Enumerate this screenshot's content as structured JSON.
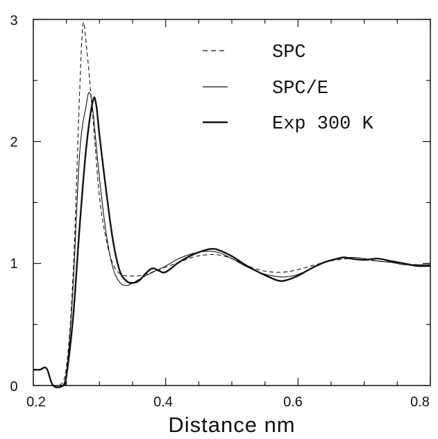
{
  "chart_data": {
    "type": "line",
    "title": "",
    "xlabel": "Distance nm",
    "ylabel": "",
    "xlim": [
      0.2,
      0.8
    ],
    "ylim": [
      0,
      3
    ],
    "x_ticks": [
      "0.2",
      "0.4",
      "0.6",
      "0.8"
    ],
    "y_ticks": [
      "0",
      "1",
      "2",
      "3"
    ],
    "grid": false,
    "legend_position": "top-right",
    "series": [
      {
        "name": "SPC",
        "style": "dashed",
        "points": [
          [
            0.24,
            0.0
          ],
          [
            0.25,
            0.15
          ],
          [
            0.26,
            0.9
          ],
          [
            0.27,
            2.4
          ],
          [
            0.275,
            2.95
          ],
          [
            0.28,
            2.8
          ],
          [
            0.29,
            2.2
          ],
          [
            0.3,
            1.55
          ],
          [
            0.31,
            1.2
          ],
          [
            0.32,
            1.0
          ],
          [
            0.33,
            0.92
          ],
          [
            0.34,
            0.9
          ],
          [
            0.36,
            0.9
          ],
          [
            0.38,
            0.93
          ],
          [
            0.4,
            0.97
          ],
          [
            0.42,
            1.01
          ],
          [
            0.44,
            1.05
          ],
          [
            0.46,
            1.07
          ],
          [
            0.48,
            1.07
          ],
          [
            0.5,
            1.04
          ],
          [
            0.52,
            0.99
          ],
          [
            0.54,
            0.95
          ],
          [
            0.56,
            0.93
          ],
          [
            0.58,
            0.93
          ],
          [
            0.6,
            0.95
          ],
          [
            0.62,
            0.98
          ],
          [
            0.64,
            1.01
          ],
          [
            0.66,
            1.03
          ],
          [
            0.68,
            1.04
          ],
          [
            0.7,
            1.03
          ],
          [
            0.72,
            1.02
          ],
          [
            0.74,
            1.01
          ],
          [
            0.76,
            1.0
          ],
          [
            0.78,
            0.99
          ],
          [
            0.8,
            0.99
          ]
        ]
      },
      {
        "name": "SPC/E",
        "style": "thin",
        "points": [
          [
            0.24,
            0.0
          ],
          [
            0.25,
            0.1
          ],
          [
            0.26,
            0.8
          ],
          [
            0.27,
            1.9
          ],
          [
            0.28,
            2.3
          ],
          [
            0.285,
            2.4
          ],
          [
            0.29,
            2.25
          ],
          [
            0.3,
            1.7
          ],
          [
            0.31,
            1.25
          ],
          [
            0.32,
            0.97
          ],
          [
            0.33,
            0.85
          ],
          [
            0.34,
            0.82
          ],
          [
            0.35,
            0.84
          ],
          [
            0.37,
            0.9
          ],
          [
            0.4,
            0.98
          ],
          [
            0.42,
            1.04
          ],
          [
            0.44,
            1.08
          ],
          [
            0.46,
            1.1
          ],
          [
            0.48,
            1.09
          ],
          [
            0.5,
            1.04
          ],
          [
            0.52,
            0.98
          ],
          [
            0.54,
            0.93
          ],
          [
            0.56,
            0.9
          ],
          [
            0.58,
            0.89
          ],
          [
            0.6,
            0.91
          ],
          [
            0.62,
            0.96
          ],
          [
            0.64,
            1.01
          ],
          [
            0.66,
            1.04
          ],
          [
            0.68,
            1.05
          ],
          [
            0.7,
            1.04
          ],
          [
            0.72,
            1.02
          ],
          [
            0.74,
            1.01
          ],
          [
            0.76,
            0.99
          ],
          [
            0.78,
            0.99
          ],
          [
            0.8,
            0.99
          ]
        ]
      },
      {
        "name": "Exp 300 K",
        "style": "thick",
        "points": [
          [
            0.2,
            0.13
          ],
          [
            0.21,
            0.13
          ],
          [
            0.22,
            0.14
          ],
          [
            0.23,
            0.0
          ],
          [
            0.245,
            0.0
          ],
          [
            0.25,
            0.08
          ],
          [
            0.26,
            0.55
          ],
          [
            0.27,
            1.3
          ],
          [
            0.28,
            1.95
          ],
          [
            0.29,
            2.33
          ],
          [
            0.295,
            2.3
          ],
          [
            0.3,
            2.05
          ],
          [
            0.31,
            1.6
          ],
          [
            0.32,
            1.2
          ],
          [
            0.33,
            0.95
          ],
          [
            0.34,
            0.86
          ],
          [
            0.35,
            0.84
          ],
          [
            0.36,
            0.86
          ],
          [
            0.37,
            0.92
          ],
          [
            0.38,
            0.96
          ],
          [
            0.39,
            0.94
          ],
          [
            0.4,
            0.93
          ],
          [
            0.42,
            1.01
          ],
          [
            0.44,
            1.07
          ],
          [
            0.46,
            1.11
          ],
          [
            0.47,
            1.12
          ],
          [
            0.48,
            1.11
          ],
          [
            0.5,
            1.06
          ],
          [
            0.52,
            0.99
          ],
          [
            0.54,
            0.93
          ],
          [
            0.56,
            0.88
          ],
          [
            0.57,
            0.86
          ],
          [
            0.58,
            0.86
          ],
          [
            0.6,
            0.9
          ],
          [
            0.62,
            0.96
          ],
          [
            0.64,
            1.01
          ],
          [
            0.66,
            1.04
          ],
          [
            0.67,
            1.05
          ],
          [
            0.68,
            1.04
          ],
          [
            0.7,
            1.03
          ],
          [
            0.72,
            1.04
          ],
          [
            0.74,
            1.02
          ],
          [
            0.76,
            1.0
          ],
          [
            0.78,
            0.98
          ],
          [
            0.8,
            0.98
          ]
        ]
      }
    ]
  }
}
